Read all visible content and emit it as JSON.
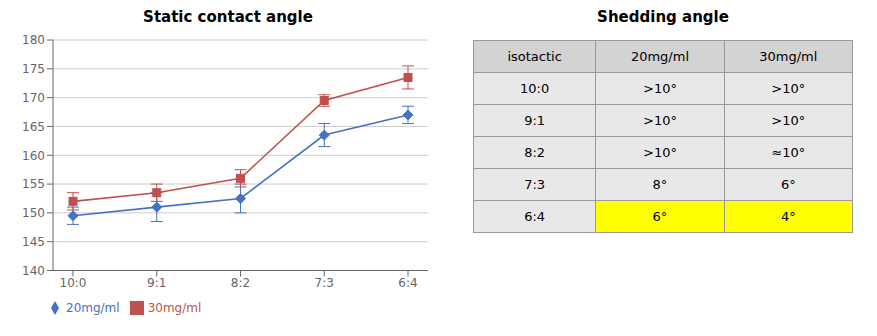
{
  "chart_data": [
    {
      "type": "line",
      "title": "Static contact angle",
      "categories": [
        "10:0",
        "9:1",
        "8:2",
        "7:3",
        "6:4"
      ],
      "series": [
        {
          "name": "20mg/ml",
          "color": "#4472C4",
          "marker": "diamond",
          "values": [
            149.5,
            151.0,
            152.5,
            163.5,
            167.0
          ],
          "yerr": [
            1.5,
            2.5,
            2.5,
            2.0,
            1.5
          ]
        },
        {
          "name": "30mg/ml",
          "color": "#C0504D",
          "marker": "square",
          "values": [
            152.0,
            153.5,
            156.0,
            169.5,
            173.5
          ],
          "yerr": [
            1.5,
            1.5,
            1.5,
            1.0,
            2.0
          ]
        }
      ],
      "ylim": [
        140,
        180
      ],
      "yticks": [
        140,
        145,
        150,
        155,
        160,
        165,
        170,
        175,
        180
      ],
      "grid": true,
      "legend": "bottom"
    },
    {
      "type": "table",
      "title": "Shedding angle",
      "columns": [
        "isotactic",
        "20mg/ml",
        "30mg/ml"
      ],
      "rows": [
        [
          "10:0",
          ">10°",
          ">10°"
        ],
        [
          "9:1",
          ">10°",
          ">10°"
        ],
        [
          "8:2",
          ">10°",
          "≈10°"
        ],
        [
          "7:3",
          "8°",
          "6°"
        ],
        [
          "6:4",
          "6°",
          "4°"
        ]
      ],
      "colors": [
        "#E8E8E8",
        "#E8E8E8",
        "#E8E8E8",
        "#E8E8E8",
        "#FFFF00"
      ]
    }
  ]
}
